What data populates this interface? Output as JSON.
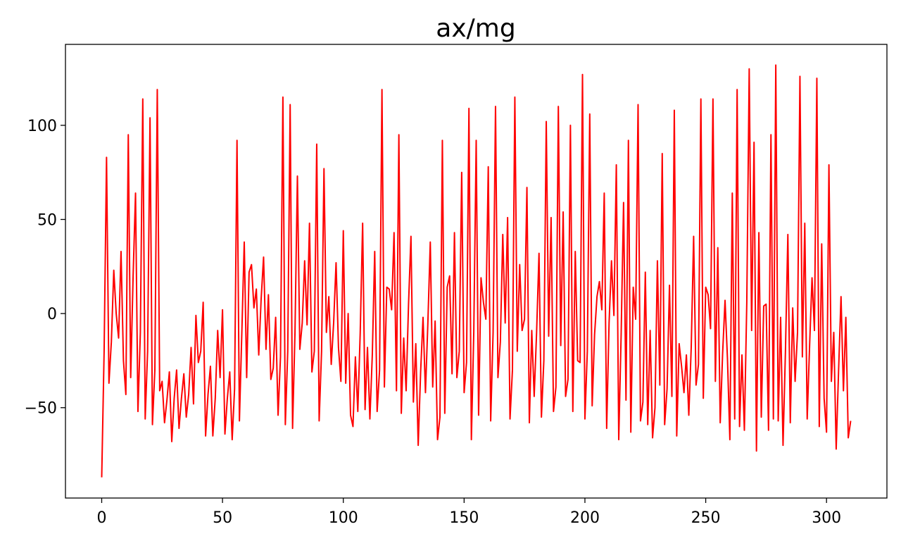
{
  "chart_data": {
    "type": "line",
    "title": "ax/mg",
    "xlabel": "",
    "ylabel": "",
    "xlim": [
      -15,
      325
    ],
    "ylim": [
      -98,
      143
    ],
    "xticks": [
      0,
      50,
      100,
      150,
      200,
      250,
      300
    ],
    "yticks": [
      -50,
      0,
      50,
      100
    ],
    "xtick_labels": [
      "0",
      "50",
      "100",
      "150",
      "200",
      "250",
      "300"
    ],
    "ytick_labels": [
      "−50",
      "0",
      "50",
      "100"
    ],
    "grid": false,
    "series": [
      {
        "color": "#ff0000",
        "x": [
          0,
          1,
          2,
          3,
          4,
          5,
          6,
          7,
          8,
          9,
          10,
          11,
          12,
          13,
          14,
          15,
          16,
          17,
          18,
          19,
          20,
          21,
          22,
          23,
          24,
          25,
          26,
          27,
          28,
          29,
          30,
          31,
          32,
          33,
          34,
          35,
          36,
          37,
          38,
          39,
          40,
          41,
          42,
          43,
          44,
          45,
          46,
          47,
          48,
          49,
          50,
          51,
          52,
          53,
          54,
          55,
          56,
          57,
          58,
          59,
          60,
          61,
          62,
          63,
          64,
          65,
          66,
          67,
          68,
          69,
          70,
          71,
          72,
          73,
          74,
          75,
          76,
          77,
          78,
          79,
          80,
          81,
          82,
          83,
          84,
          85,
          86,
          87,
          88,
          89,
          90,
          91,
          92,
          93,
          94,
          95,
          96,
          97,
          98,
          99,
          100,
          101,
          102,
          103,
          104,
          105,
          106,
          107,
          108,
          109,
          110,
          111,
          112,
          113,
          114,
          115,
          116,
          117,
          118,
          119,
          120,
          121,
          122,
          123,
          124,
          125,
          126,
          127,
          128,
          129,
          130,
          131,
          132,
          133,
          134,
          135,
          136,
          137,
          138,
          139,
          140,
          141,
          142,
          143,
          144,
          145,
          146,
          147,
          148,
          149,
          150,
          151,
          152,
          153,
          154,
          155,
          156,
          157,
          158,
          159,
          160,
          161,
          162,
          163,
          164,
          165,
          166,
          167,
          168,
          169,
          170,
          171,
          172,
          173,
          174,
          175,
          176,
          177,
          178,
          179,
          180,
          181,
          182,
          183,
          184,
          185,
          186,
          187,
          188,
          189,
          190,
          191,
          192,
          193,
          194,
          195,
          196,
          197,
          198,
          199,
          200,
          201,
          202,
          203,
          204,
          205,
          206,
          207,
          208,
          209,
          210,
          211,
          212,
          213,
          214,
          215,
          216,
          217,
          218,
          219,
          220,
          221,
          222,
          223,
          224,
          225,
          226,
          227,
          228,
          229,
          230,
          231,
          232,
          233,
          234,
          235,
          236,
          237,
          238,
          239,
          240,
          241,
          242,
          243,
          244,
          245,
          246,
          247,
          248,
          249,
          250,
          251,
          252,
          253,
          254,
          255,
          256,
          257,
          258,
          259,
          260,
          261,
          262,
          263,
          264,
          265,
          266,
          267,
          268,
          269,
          270,
          271,
          272,
          273,
          274,
          275,
          276,
          277,
          278,
          279,
          280,
          281,
          282,
          283,
          284,
          285,
          286,
          287,
          288,
          289,
          290,
          291,
          292,
          293,
          294,
          295,
          296,
          297,
          298,
          299,
          300,
          301,
          302,
          303,
          304,
          305,
          306,
          307,
          308,
          309,
          310
        ],
        "y": [
          -87,
          -20,
          83,
          -37,
          -15,
          23,
          0,
          -13,
          33,
          -25,
          -43,
          95,
          -34,
          20,
          64,
          -52,
          -10,
          114,
          -56,
          -20,
          104,
          -59,
          -30,
          119,
          -41,
          -36,
          -58,
          -46,
          -31,
          -68,
          -45,
          -30,
          -61,
          -45,
          -32,
          -55,
          -43,
          -18,
          -48,
          -1,
          -26,
          -20,
          6,
          -65,
          -43,
          -28,
          -65,
          -45,
          -9,
          -34,
          2,
          -64,
          -45,
          -31,
          -67,
          -40,
          92,
          -57,
          -10,
          38,
          -34,
          22,
          26,
          3,
          13,
          -22,
          8,
          30,
          -19,
          10,
          -35,
          -29,
          -2,
          -54,
          -23,
          115,
          -59,
          -20,
          111,
          -61,
          -10,
          73,
          -19,
          -5,
          28,
          -6,
          48,
          -31,
          -20,
          90,
          -57,
          -20,
          77,
          -10,
          9,
          -27,
          -5,
          27,
          -18,
          -36,
          44,
          -37,
          0,
          -54,
          -60,
          -23,
          -52,
          -10,
          48,
          -51,
          -18,
          -56,
          -22,
          33,
          -52,
          -30,
          119,
          -39,
          14,
          13,
          2,
          43,
          -41,
          95,
          -53,
          -13,
          -41,
          5,
          41,
          -47,
          -16,
          -70,
          -31,
          -2,
          -42,
          -5,
          38,
          -39,
          -4,
          -67,
          -55,
          92,
          -53,
          14,
          20,
          -32,
          43,
          -34,
          -20,
          75,
          -42,
          -26,
          109,
          -67,
          -10,
          92,
          -54,
          19,
          6,
          -3,
          78,
          -57,
          -10,
          110,
          -34,
          -15,
          42,
          -5,
          51,
          -56,
          -30,
          115,
          -20,
          26,
          -9,
          -3,
          67,
          -58,
          -9,
          -44,
          -10,
          32,
          -55,
          -25,
          102,
          -12,
          51,
          -52,
          -39,
          110,
          -17,
          54,
          -44,
          -35,
          100,
          -52,
          33,
          -25,
          -26,
          127,
          -56,
          -20,
          106,
          -49,
          -11,
          9,
          17,
          2,
          64,
          -61,
          -5,
          28,
          -1,
          79,
          -67,
          -11,
          59,
          -46,
          92,
          -63,
          14,
          -3,
          111,
          -57,
          -47,
          22,
          -59,
          -9,
          -66,
          -50,
          28,
          -38,
          85,
          -59,
          -40,
          15,
          -44,
          108,
          -65,
          -16,
          -28,
          -42,
          -22,
          -54,
          -18,
          41,
          -38,
          -27,
          114,
          -45,
          14,
          10,
          -8,
          114,
          -36,
          35,
          -58,
          -21,
          7,
          -24,
          -67,
          64,
          -56,
          119,
          -60,
          -22,
          -62,
          6,
          130,
          -9,
          91,
          -73,
          43,
          -55,
          4,
          5,
          -62,
          95,
          -56,
          132,
          -57,
          -2,
          -70,
          -20,
          42,
          -58,
          3,
          -36,
          -10,
          126,
          -23,
          48,
          -56,
          -17,
          19,
          -9,
          125,
          -60,
          37,
          -45,
          -63,
          79,
          -36,
          -10,
          -72,
          -30,
          9,
          -41,
          -2,
          -66,
          -57
        ]
      }
    ]
  }
}
